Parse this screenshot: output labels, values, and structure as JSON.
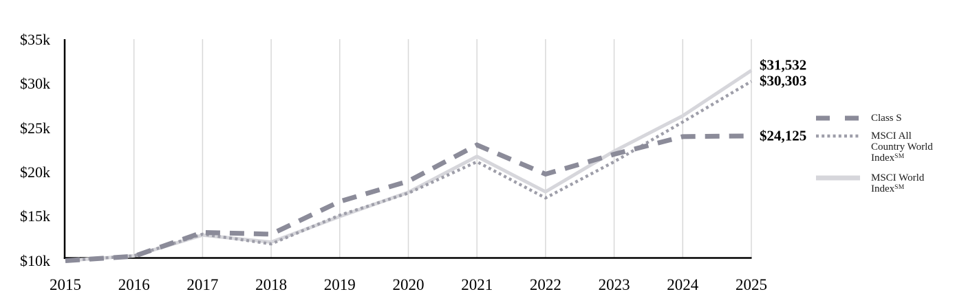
{
  "chart_data": {
    "type": "line",
    "title": "",
    "xlabel": "",
    "ylabel": "",
    "x": [
      2015,
      2016,
      2017,
      2018,
      2019,
      2020,
      2021,
      2022,
      2023,
      2024,
      2025
    ],
    "x_tick_labels": [
      "2015",
      "2016",
      "2017",
      "2018",
      "2019",
      "2020",
      "2021",
      "2022",
      "2023",
      "2024",
      "2025"
    ],
    "ylim": [
      10000,
      35000
    ],
    "y_ticks": [
      {
        "label": "$35k",
        "value": 35000
      },
      {
        "label": "$30k",
        "value": 30000
      },
      {
        "label": "$25k",
        "value": 25000
      },
      {
        "label": "$20k",
        "value": 20000
      },
      {
        "label": "$15k",
        "value": 15000
      },
      {
        "label": "$10k",
        "value": 10000
      }
    ],
    "grid": "vertical-gridlines-per-year",
    "legend_position": "right",
    "grid_color": "#D8D8D8",
    "axis_color": "#000000",
    "text_color": "#000000",
    "series": [
      {
        "name": "Class S",
        "trademark": "",
        "line_style": "dashed",
        "color": "#8B8B99",
        "values": [
          10000,
          10500,
          13200,
          13000,
          16700,
          19000,
          23100,
          19800,
          22050,
          24050,
          24125
        ],
        "end_label": "$24,125"
      },
      {
        "name": "MSCI All Country World Index",
        "trademark": "SM",
        "line_style": "dotted",
        "color": "#9E9EA9",
        "values": [
          10000,
          10550,
          13000,
          11900,
          15150,
          17650,
          21200,
          17100,
          21200,
          25700,
          30303
        ],
        "end_label": "$30,303"
      },
      {
        "name": "MSCI World Index",
        "trademark": "SM",
        "line_style": "solid",
        "color": "#D6D6DB",
        "values": [
          10000,
          10550,
          12900,
          12100,
          15000,
          17750,
          21800,
          17800,
          22400,
          26400,
          31532
        ],
        "end_label": "$31,532"
      }
    ]
  }
}
